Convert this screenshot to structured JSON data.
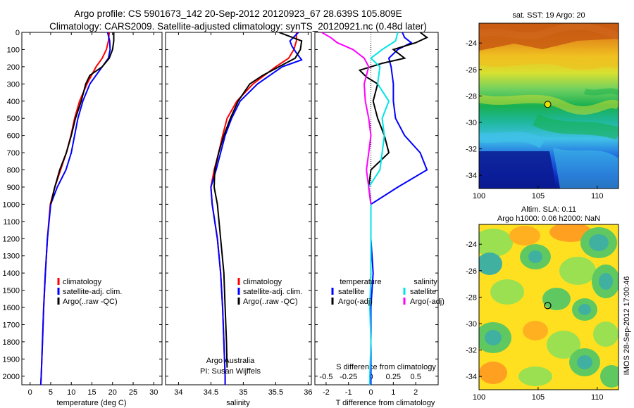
{
  "title_line1": "Argo profile: CS 5901673_142 20-Sep-2012 20120923_67 28.639S 105.809E",
  "title_line2": "Climatology: CARS2009. Satellite-adjusted climatology: synTS_20120921.nc (0.48d later)",
  "side_stamp": "IMOS 28-Sep-2012 17:00:46",
  "sst_title": "sat. SST: 19 Argo: 20",
  "sla_title1": "Altim. SLA: 0.11",
  "sla_title2": "Argo h1000: 0.06 h2000: NaN",
  "credit1": "Argo Australia",
  "credit2": "PI: Susan Wijffels",
  "colors": {
    "climatology": "#ff0000",
    "satellite": "#0000ff",
    "argo": "#000000",
    "satellite_sal": "#00e5e5",
    "argo_sal": "#ff00ff"
  },
  "chart_data": [
    {
      "type": "line",
      "panel": "temperature",
      "xlabel": "temperature (deg C)",
      "ylabel": "",
      "xlim": [
        -2,
        32
      ],
      "ylim": [
        2050,
        0
      ],
      "xticks": [
        0,
        5,
        10,
        15,
        20,
        25,
        30
      ],
      "yticks": [
        0,
        100,
        200,
        300,
        400,
        500,
        600,
        700,
        800,
        900,
        1000,
        1100,
        1200,
        1300,
        1400,
        1500,
        1600,
        1700,
        1800,
        1900,
        2000
      ],
      "legend": {
        "position": "lower-middle",
        "entries": [
          "climatology",
          "satellite-adj. clim.",
          "Argo(..raw -QC)"
        ]
      },
      "series": [
        {
          "name": "climatology",
          "color": "#ff0000",
          "depth": [
            0,
            50,
            100,
            150,
            200,
            300,
            400,
            500,
            600,
            700,
            800,
            900,
            1000,
            1200,
            1400,
            1600,
            1800,
            2000,
            2050
          ],
          "values": [
            19.2,
            19.0,
            18.5,
            17.5,
            16.0,
            13.8,
            12.0,
            10.8,
            9.9,
            8.8,
            7.4,
            6.0,
            4.9,
            4.2,
            3.7,
            3.3,
            3.0,
            2.7,
            2.6
          ]
        },
        {
          "name": "satellite-adj. clim.",
          "color": "#0000ff",
          "depth": [
            0,
            50,
            100,
            150,
            200,
            300,
            400,
            500,
            600,
            700,
            800,
            900,
            1000,
            1200,
            1400,
            1600,
            1800,
            2000,
            2050
          ],
          "values": [
            18.8,
            19.3,
            19.4,
            19.0,
            17.5,
            14.5,
            12.8,
            11.6,
            10.8,
            10.0,
            8.7,
            6.6,
            5.0,
            4.2,
            3.7,
            3.3,
            3.0,
            2.7,
            2.6
          ]
        },
        {
          "name": "Argo(..raw -QC)",
          "color": "#000000",
          "depth": [
            0,
            50,
            100,
            150,
            200,
            250,
            300,
            400,
            500,
            600,
            700,
            800,
            900,
            1000
          ],
          "values": [
            20.3,
            20.3,
            20.0,
            19.2,
            17.5,
            14.5,
            13.5,
            12.4,
            11.0,
            10.0,
            8.8,
            7.2,
            6.0,
            5.0
          ]
        }
      ]
    },
    {
      "type": "line",
      "panel": "salinity",
      "xlabel": "salinity",
      "ylabel": "",
      "xlim": [
        33.8,
        36.05
      ],
      "ylim": [
        2050,
        0
      ],
      "xticks": [
        34,
        34.5,
        35,
        35.5,
        36
      ],
      "legend": {
        "position": "lower-middle",
        "entries": [
          "climatology",
          "satellite-adj. clim.",
          "Argo(..raw -QC)"
        ]
      },
      "series": [
        {
          "name": "climatology",
          "color": "#ff0000",
          "depth": [
            0,
            50,
            100,
            150,
            200,
            300,
            400,
            500,
            600,
            700,
            800,
            900,
            1000,
            1200,
            1400,
            1600,
            1800,
            2000,
            2050
          ],
          "values": [
            35.82,
            35.82,
            35.78,
            35.7,
            35.5,
            35.15,
            34.9,
            34.75,
            34.68,
            34.62,
            34.55,
            34.5,
            34.52,
            34.6,
            34.65,
            34.68,
            34.7,
            34.72,
            34.72
          ]
        },
        {
          "name": "satellite-adj. clim.",
          "color": "#0000ff",
          "depth": [
            0,
            50,
            80,
            120,
            160,
            200,
            300,
            400,
            500,
            600,
            700,
            800,
            900,
            1000,
            1200,
            1400,
            1600,
            1800,
            2000,
            2050
          ],
          "values": [
            35.85,
            35.72,
            35.75,
            35.82,
            35.9,
            35.6,
            35.22,
            34.95,
            34.82,
            34.72,
            34.65,
            34.58,
            34.5,
            34.52,
            34.6,
            34.65,
            34.68,
            34.7,
            34.72,
            34.72
          ]
        },
        {
          "name": "Argo(..raw -QC)",
          "color": "#000000",
          "depth": [
            0,
            50,
            100,
            150,
            200,
            250,
            300,
            400,
            500,
            600,
            700,
            800,
            900,
            1000,
            1200,
            1400,
            1600,
            1800,
            1950
          ],
          "values": [
            35.55,
            35.9,
            35.88,
            35.8,
            35.55,
            35.3,
            35.1,
            34.92,
            34.8,
            34.7,
            34.62,
            34.56,
            34.55,
            34.6,
            34.65,
            34.7,
            34.72,
            34.74,
            34.75
          ]
        }
      ]
    },
    {
      "type": "line",
      "panel": "differences",
      "xlabel": "T difference from climatology",
      "xlabel2": "S difference from climatology",
      "xlim": [
        -2.5,
        3.0
      ],
      "ylim": [
        2050,
        0
      ],
      "xticks": [
        -2,
        -1,
        0,
        1,
        2
      ],
      "xticks_s": [
        "-0.5",
        "-0.25",
        "0",
        "0.25",
        "0.5"
      ],
      "legend": {
        "position": "lower-middle",
        "groups": [
          {
            "title": "temperature",
            "entries": [
              "satellite",
              "Argo(-adj)"
            ]
          },
          {
            "title": "salinity",
            "entries": [
              "satellite",
              "Argo(-adj)"
            ]
          }
        ]
      },
      "series": [
        {
          "name": "temperature satellite",
          "color": "#0000ff",
          "depth": [
            0,
            30,
            60,
            100,
            150,
            200,
            300,
            400,
            500,
            600,
            700,
            800,
            900,
            1000,
            1200,
            1400,
            1600,
            1800,
            2000,
            2050
          ],
          "values": [
            1.4,
            1.5,
            1.8,
            1.2,
            0.8,
            0.9,
            1.0,
            1.0,
            1.1,
            1.5,
            2.2,
            2.5,
            1.2,
            0.0,
            0.0,
            0.1,
            0.0,
            0.0,
            0.0,
            0.0
          ]
        },
        {
          "name": "temperature Argo(-adj)",
          "color": "#000000",
          "depth": [
            0,
            30,
            60,
            100,
            150,
            180,
            220,
            260,
            300,
            400,
            500,
            600,
            700,
            800,
            900,
            1000
          ],
          "values": [
            2.2,
            2.5,
            2.0,
            1.0,
            1.5,
            0.5,
            -0.5,
            -0.2,
            0.3,
            0.1,
            0.3,
            0.6,
            0.8,
            0.0,
            -0.1,
            0.0
          ]
        },
        {
          "name": "salinity satellite",
          "color": "#00e5e5",
          "depth": [
            0,
            50,
            100,
            150,
            200,
            300,
            400,
            500,
            600,
            700,
            800,
            900,
            1000,
            1200,
            1400,
            1600,
            1800,
            2000,
            2050
          ],
          "values": [
            1.2,
            1.1,
            0.5,
            0.0,
            0.4,
            0.3,
            0.8,
            0.5,
            0.6,
            0.5,
            0.4,
            -0.1,
            0.0,
            0.0,
            0.0,
            -0.05,
            0.0,
            -0.05,
            -0.05
          ]
        },
        {
          "name": "salinity Argo(-adj)",
          "color": "#ff00ff",
          "depth": [
            0,
            30,
            60,
            100,
            150,
            200,
            250,
            300,
            400,
            500,
            600,
            700,
            800,
            900,
            1000
          ],
          "values": [
            -2.2,
            -1.8,
            -1.5,
            -0.8,
            -0.3,
            -0.1,
            -0.2,
            -0.3,
            -0.25,
            -0.1,
            0.0,
            -0.1,
            -0.2,
            -0.1,
            0.0
          ]
        }
      ]
    },
    {
      "type": "heatmap",
      "panel": "sat-sst",
      "title": "sat. SST: 19 Argo: 20",
      "xlim": [
        100,
        111.8
      ],
      "ylim": [
        -35,
        -22.5
      ],
      "xticks": [
        100,
        105,
        110
      ],
      "yticks": [
        -24,
        -26,
        -28,
        -30,
        -32,
        -34
      ],
      "marker": {
        "lon": 105.809,
        "lat": -28.639
      }
    },
    {
      "type": "heatmap",
      "panel": "altim-sla",
      "title": "Altim. SLA: 0.11",
      "xlim": [
        100,
        111.8
      ],
      "ylim": [
        -35,
        -22.5
      ],
      "xticks": [
        100,
        105,
        110
      ],
      "yticks": [
        -24,
        -26,
        -28,
        -30,
        -32,
        -34
      ],
      "marker": {
        "lon": 105.809,
        "lat": -28.639
      }
    }
  ]
}
